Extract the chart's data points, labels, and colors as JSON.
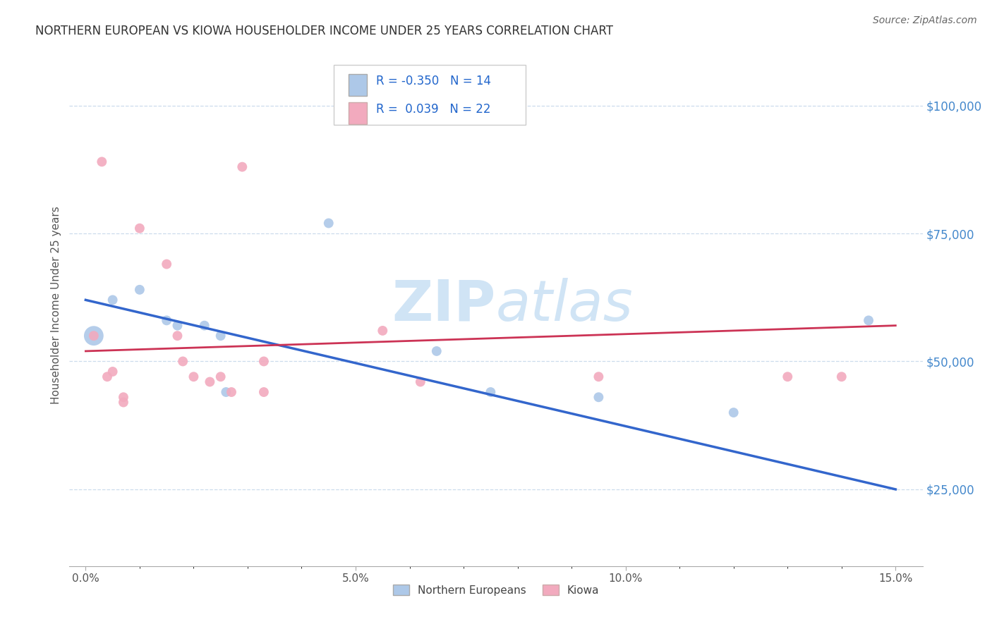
{
  "title": "NORTHERN EUROPEAN VS KIOWA HOUSEHOLDER INCOME UNDER 25 YEARS CORRELATION CHART",
  "source": "Source: ZipAtlas.com",
  "ylabel": "Householder Income Under 25 years",
  "ytick_labels": [
    "$25,000",
    "$50,000",
    "$75,000",
    "$100,000"
  ],
  "ytick_vals": [
    25000,
    50000,
    75000,
    100000
  ],
  "xlim": [
    -0.3,
    15.5
  ],
  "ylim": [
    10000,
    112000
  ],
  "blue_label": "Northern Europeans",
  "pink_label": "Kiowa",
  "blue_R": "-0.350",
  "blue_N": "14",
  "pink_R": "0.039",
  "pink_N": "22",
  "blue_color": "#adc8e8",
  "pink_color": "#f2aabe",
  "blue_line_color": "#3366cc",
  "pink_line_color": "#cc3355",
  "watermark_color": "#d0e4f5",
  "blue_x": [
    0.15,
    0.5,
    1.0,
    1.5,
    1.7,
    2.2,
    2.5,
    2.6,
    4.5,
    6.5,
    7.5,
    9.5,
    12.0,
    14.5
  ],
  "blue_y": [
    55000,
    62000,
    64000,
    58000,
    57000,
    57000,
    55000,
    44000,
    77000,
    52000,
    44000,
    43000,
    40000,
    58000
  ],
  "blue_size": [
    400,
    100,
    100,
    100,
    100,
    100,
    100,
    100,
    100,
    100,
    100,
    100,
    100,
    100
  ],
  "pink_x": [
    0.15,
    0.4,
    0.5,
    0.7,
    0.7,
    1.0,
    1.5,
    1.7,
    1.8,
    2.0,
    2.3,
    2.5,
    2.7,
    3.3,
    3.3,
    5.5,
    6.2,
    9.5,
    13.0,
    14.0,
    0.3,
    2.9
  ],
  "pink_y": [
    55000,
    47000,
    48000,
    43000,
    42000,
    76000,
    69000,
    55000,
    50000,
    47000,
    46000,
    47000,
    44000,
    50000,
    44000,
    56000,
    46000,
    47000,
    47000,
    47000,
    89000,
    88000
  ],
  "pink_size": [
    100,
    100,
    100,
    100,
    100,
    100,
    100,
    100,
    100,
    100,
    100,
    100,
    100,
    100,
    100,
    100,
    100,
    100,
    100,
    100,
    100,
    100
  ],
  "blue_line_x0": 0.0,
  "blue_line_y0": 62000,
  "blue_line_x1": 15.0,
  "blue_line_y1": 25000,
  "pink_line_x0": 0.0,
  "pink_line_y0": 52000,
  "pink_line_x1": 15.0,
  "pink_line_y1": 57000
}
